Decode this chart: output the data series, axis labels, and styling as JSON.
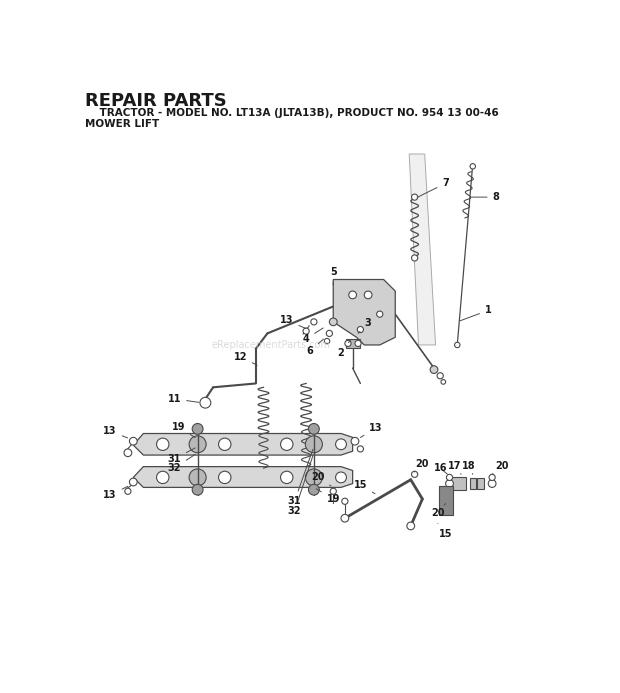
{
  "title_line1": "REPAIR PARTS",
  "title_line2": "    TRACTOR - MODEL NO. LT13A (JLTA13B), PRODUCT NO. 954 13 00-46",
  "title_line3": "MOWER LIFT",
  "bg_color": "#ffffff",
  "text_color": "#1a1a1a",
  "line_color": "#4a4a4a",
  "watermark": "eReplacementParts.com",
  "watermark_color": "#cccccc"
}
